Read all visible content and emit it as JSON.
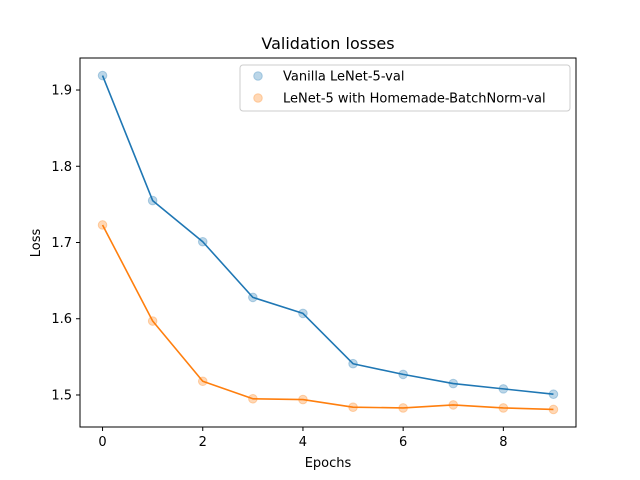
{
  "chart_data": {
    "type": "line",
    "title": "Validation losses",
    "xlabel": "Epochs",
    "ylabel": "Loss",
    "xlim": [
      -0.45,
      9.45
    ],
    "ylim": [
      1.458,
      1.942
    ],
    "xticks": [
      0,
      2,
      4,
      6,
      8
    ],
    "yticks": [
      1.5,
      1.6,
      1.7,
      1.8,
      1.9
    ],
    "xtick_labels": [
      "0",
      "2",
      "4",
      "6",
      "8"
    ],
    "ytick_labels": [
      "1.5",
      "1.6",
      "1.7",
      "1.8",
      "1.9"
    ],
    "grid": false,
    "legend_position": "top-right",
    "x": [
      0,
      1,
      2,
      3,
      4,
      5,
      6,
      7,
      8,
      9
    ],
    "series": [
      {
        "name": "Vanilla LeNet-5-val",
        "color": "#1f77b4",
        "values": [
          1.919,
          1.755,
          1.701,
          1.628,
          1.607,
          1.541,
          1.527,
          1.515,
          1.508,
          1.501
        ]
      },
      {
        "name": "LeNet-5 with Homemade-BatchNorm-val",
        "color": "#ff7f0e",
        "values": [
          1.723,
          1.597,
          1.518,
          1.495,
          1.494,
          1.484,
          1.483,
          1.487,
          1.483,
          1.481
        ]
      }
    ]
  }
}
